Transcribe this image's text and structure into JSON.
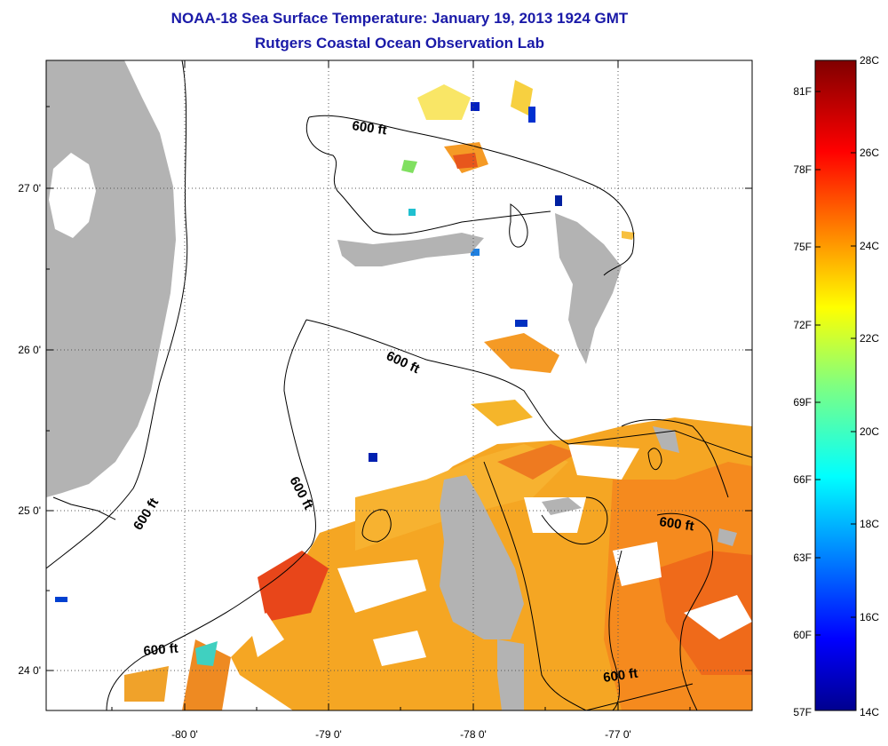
{
  "title": {
    "line1": "NOAA-18 Sea Surface Temperature:  January 19, 2013 1924 GMT",
    "line2": "Rutgers Coastal Ocean Observation Lab"
  },
  "map": {
    "lat_ticks": [
      "27 0'",
      "26 0'",
      "25 0'",
      "24 0'"
    ],
    "lon_ticks": [
      "-80 0'",
      "-79 0'",
      "-78 0'",
      "-77 0'"
    ],
    "contour_label": "600 ft",
    "colors": {
      "land": "#b3b3b3",
      "cloud": "#ffffff",
      "contour": "#000000"
    },
    "color_scale_range_c": [
      14,
      28
    ]
  },
  "colorbar": {
    "fahrenheit": [
      "81F",
      "78F",
      "75F",
      "72F",
      "69F",
      "66F",
      "63F",
      "60F",
      "57F"
    ],
    "celsius": [
      "28C",
      "26C",
      "24C",
      "22C",
      "20C",
      "18C",
      "16C",
      "14C"
    ]
  }
}
